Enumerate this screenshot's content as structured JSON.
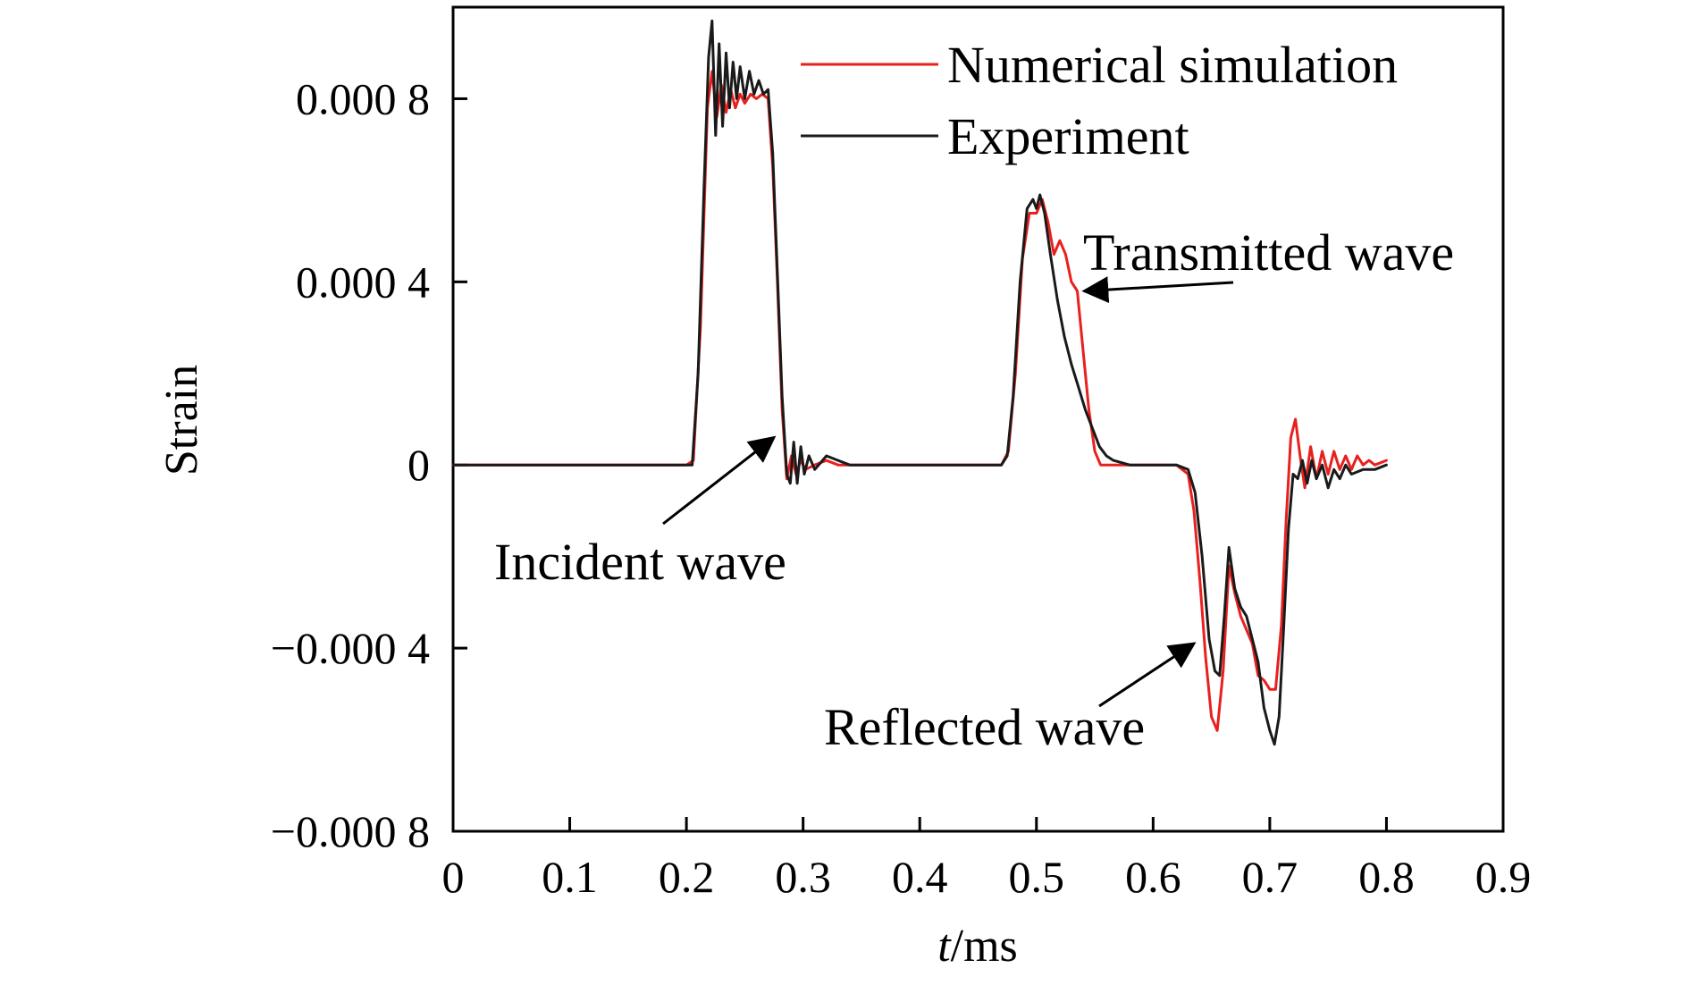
{
  "chart_data": {
    "type": "line",
    "title": "",
    "xlabel": {
      "var": "t",
      "unit": "/ms"
    },
    "ylabel": "Strain",
    "xlim": [
      0,
      0.9
    ],
    "ylim": [
      -0.0008,
      0.001
    ],
    "x_ticks": [
      {
        "value": 0,
        "label": "0"
      },
      {
        "value": 0.1,
        "label": "0.1"
      },
      {
        "value": 0.2,
        "label": "0.2"
      },
      {
        "value": 0.3,
        "label": "0.3"
      },
      {
        "value": 0.4,
        "label": "0.4"
      },
      {
        "value": 0.5,
        "label": "0.5"
      },
      {
        "value": 0.6,
        "label": "0.6"
      },
      {
        "value": 0.7,
        "label": "0.7"
      },
      {
        "value": 0.8,
        "label": "0.8"
      },
      {
        "value": 0.9,
        "label": "0.9"
      }
    ],
    "y_ticks": [
      {
        "value": 0.0008,
        "label": "0.000 8"
      },
      {
        "value": 0.0004,
        "label": "0.000 4"
      },
      {
        "value": 0,
        "label": "0"
      },
      {
        "value": -0.0004,
        "label": "−0.000 4"
      },
      {
        "value": -0.0008,
        "label": "−0.000 8"
      }
    ],
    "grid": false,
    "legend_position": "top-right",
    "series": [
      {
        "name": "Numerical simulation",
        "color": "#e8201e",
        "points": [
          [
            0,
            0
          ],
          [
            0.2,
            0
          ],
          [
            0.206,
            1e-05
          ],
          [
            0.212,
            0.0003
          ],
          [
            0.218,
            0.00078
          ],
          [
            0.222,
            0.00086
          ],
          [
            0.226,
            0.00076
          ],
          [
            0.23,
            0.00083
          ],
          [
            0.234,
            0.00077
          ],
          [
            0.238,
            0.00082
          ],
          [
            0.242,
            0.00078
          ],
          [
            0.246,
            0.00081
          ],
          [
            0.25,
            0.00079
          ],
          [
            0.255,
            0.00081
          ],
          [
            0.26,
            0.0008
          ],
          [
            0.265,
            0.00081
          ],
          [
            0.27,
            0.0008
          ],
          [
            0.274,
            0.00065
          ],
          [
            0.278,
            0.0004
          ],
          [
            0.282,
            0.00012
          ],
          [
            0.286,
            -3e-05
          ],
          [
            0.29,
            2e-05
          ],
          [
            0.294,
            -2e-05
          ],
          [
            0.298,
            1e-05
          ],
          [
            0.302,
            -1e-05
          ],
          [
            0.31,
            0
          ],
          [
            0.32,
            1e-05
          ],
          [
            0.33,
            0
          ],
          [
            0.35,
            0
          ],
          [
            0.4,
            0
          ],
          [
            0.45,
            0
          ],
          [
            0.47,
            0
          ],
          [
            0.476,
            3e-05
          ],
          [
            0.482,
            0.0002
          ],
          [
            0.488,
            0.00045
          ],
          [
            0.494,
            0.00055
          ],
          [
            0.5,
            0.00055
          ],
          [
            0.505,
            0.00058
          ],
          [
            0.51,
            0.00053
          ],
          [
            0.515,
            0.00046
          ],
          [
            0.52,
            0.00049
          ],
          [
            0.525,
            0.00046
          ],
          [
            0.53,
            0.0004
          ],
          [
            0.535,
            0.00038
          ],
          [
            0.54,
            0.00025
          ],
          [
            0.545,
            0.00012
          ],
          [
            0.55,
            3e-05
          ],
          [
            0.555,
            0
          ],
          [
            0.56,
            0
          ],
          [
            0.58,
            0
          ],
          [
            0.6,
            0
          ],
          [
            0.62,
            0
          ],
          [
            0.63,
            -2e-05
          ],
          [
            0.635,
            -0.0001
          ],
          [
            0.64,
            -0.00025
          ],
          [
            0.645,
            -0.00042
          ],
          [
            0.65,
            -0.00055
          ],
          [
            0.655,
            -0.00058
          ],
          [
            0.66,
            -0.00045
          ],
          [
            0.665,
            -0.00022
          ],
          [
            0.67,
            -0.00028
          ],
          [
            0.675,
            -0.00033
          ],
          [
            0.68,
            -0.00036
          ],
          [
            0.685,
            -0.00039
          ],
          [
            0.69,
            -0.00046
          ],
          [
            0.695,
            -0.00047
          ],
          [
            0.7,
            -0.00049
          ],
          [
            0.705,
            -0.00049
          ],
          [
            0.71,
            -0.00035
          ],
          [
            0.714,
            -0.00012
          ],
          [
            0.718,
            6e-05
          ],
          [
            0.722,
            0.0001
          ],
          [
            0.726,
            2e-05
          ],
          [
            0.73,
            -5e-05
          ],
          [
            0.735,
            4e-05
          ],
          [
            0.74,
            -3e-05
          ],
          [
            0.745,
            3e-05
          ],
          [
            0.75,
            -2e-05
          ],
          [
            0.755,
            3e-05
          ],
          [
            0.76,
            -1e-05
          ],
          [
            0.765,
            2e-05
          ],
          [
            0.77,
            -1e-05
          ],
          [
            0.775,
            2e-05
          ],
          [
            0.78,
            0
          ],
          [
            0.785,
            1e-05
          ],
          [
            0.79,
            0
          ],
          [
            0.8,
            1e-05
          ]
        ]
      },
      {
        "name": "Experiment",
        "color": "#1a1a1a",
        "points": [
          [
            0,
            0
          ],
          [
            0.2,
            0
          ],
          [
            0.205,
            0
          ],
          [
            0.21,
            0.0002
          ],
          [
            0.215,
            0.0006
          ],
          [
            0.219,
            0.00089
          ],
          [
            0.222,
            0.00097
          ],
          [
            0.225,
            0.00072
          ],
          [
            0.228,
            0.00092
          ],
          [
            0.231,
            0.00074
          ],
          [
            0.234,
            0.0009
          ],
          [
            0.237,
            0.00078
          ],
          [
            0.24,
            0.00088
          ],
          [
            0.243,
            0.0008
          ],
          [
            0.246,
            0.00087
          ],
          [
            0.25,
            0.0008
          ],
          [
            0.254,
            0.00086
          ],
          [
            0.258,
            0.00081
          ],
          [
            0.262,
            0.00084
          ],
          [
            0.266,
            0.00081
          ],
          [
            0.27,
            0.00082
          ],
          [
            0.274,
            0.00068
          ],
          [
            0.278,
            0.00042
          ],
          [
            0.282,
            0.00015
          ],
          [
            0.286,
            -2e-05
          ],
          [
            0.289,
            -4e-05
          ],
          [
            0.292,
            5e-05
          ],
          [
            0.295,
            -4e-05
          ],
          [
            0.298,
            4e-05
          ],
          [
            0.301,
            -2e-05
          ],
          [
            0.305,
            2e-05
          ],
          [
            0.31,
            -1e-05
          ],
          [
            0.32,
            2e-05
          ],
          [
            0.33,
            1e-05
          ],
          [
            0.34,
            0
          ],
          [
            0.36,
            0
          ],
          [
            0.4,
            0
          ],
          [
            0.44,
            0
          ],
          [
            0.47,
            0
          ],
          [
            0.475,
            2e-05
          ],
          [
            0.48,
            0.00015
          ],
          [
            0.486,
            0.0004
          ],
          [
            0.492,
            0.00056
          ],
          [
            0.497,
            0.00058
          ],
          [
            0.5,
            0.00056
          ],
          [
            0.503,
            0.00059
          ],
          [
            0.507,
            0.00055
          ],
          [
            0.512,
            0.00046
          ],
          [
            0.518,
            0.00036
          ],
          [
            0.524,
            0.00028
          ],
          [
            0.53,
            0.00022
          ],
          [
            0.536,
            0.00017
          ],
          [
            0.542,
            0.00012
          ],
          [
            0.548,
            8e-05
          ],
          [
            0.554,
            4e-05
          ],
          [
            0.56,
            2e-05
          ],
          [
            0.566,
            1e-05
          ],
          [
            0.58,
            0
          ],
          [
            0.6,
            0
          ],
          [
            0.62,
            0
          ],
          [
            0.63,
            -1e-05
          ],
          [
            0.636,
            -6e-05
          ],
          [
            0.642,
            -0.0002
          ],
          [
            0.648,
            -0.00038
          ],
          [
            0.653,
            -0.00045
          ],
          [
            0.657,
            -0.00046
          ],
          [
            0.661,
            -0.00033
          ],
          [
            0.665,
            -0.00018
          ],
          [
            0.67,
            -0.00027
          ],
          [
            0.675,
            -0.00031
          ],
          [
            0.68,
            -0.00033
          ],
          [
            0.685,
            -0.00038
          ],
          [
            0.69,
            -0.00043
          ],
          [
            0.695,
            -0.00053
          ],
          [
            0.7,
            -0.00058
          ],
          [
            0.704,
            -0.00061
          ],
          [
            0.708,
            -0.00055
          ],
          [
            0.712,
            -0.00035
          ],
          [
            0.716,
            -0.00014
          ],
          [
            0.72,
            -2e-05
          ],
          [
            0.724,
            -3e-05
          ],
          [
            0.728,
            1e-05
          ],
          [
            0.732,
            -4e-05
          ],
          [
            0.736,
            1e-05
          ],
          [
            0.74,
            -3e-05
          ],
          [
            0.745,
            0
          ],
          [
            0.75,
            -5e-05
          ],
          [
            0.755,
            -1e-05
          ],
          [
            0.76,
            -3e-05
          ],
          [
            0.765,
            0
          ],
          [
            0.77,
            -2e-05
          ],
          [
            0.78,
            -1e-05
          ],
          [
            0.79,
            -1e-05
          ],
          [
            0.8,
            0
          ]
        ]
      }
    ],
    "annotations": [
      {
        "text": "Transmitted wave",
        "tip": [
          0.541,
          0.00038
        ]
      },
      {
        "text": "Incident wave",
        "tip": [
          0.275,
          6e-05
        ]
      },
      {
        "text": "Reflected wave",
        "tip": [
          0.635,
          -0.00039
        ]
      }
    ]
  }
}
